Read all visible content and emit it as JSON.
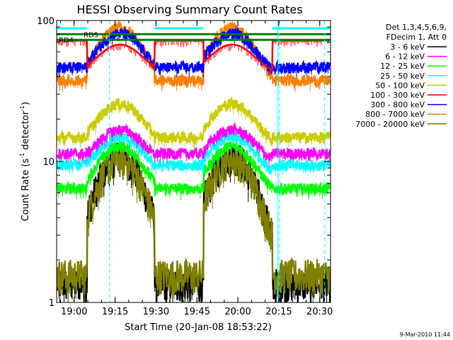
{
  "chart_data": {
    "type": "line",
    "title": "HESSI Observing Summary Count Rates",
    "xlabel": "Start Time (20-Jan-08 18:53:22)",
    "ylabel_parts": {
      "pre": "Count Rate (s",
      "sup": "-1",
      "post": " detector",
      "close": ")"
    },
    "y_scale": "log",
    "ylim": [
      1,
      100
    ],
    "xlim_minutes": [
      18.893,
      20.566
    ],
    "x_ticks": [
      {
        "label": "19:00",
        "t": 19.0
      },
      {
        "label": "19:15",
        "t": 19.25
      },
      {
        "label": "19:30",
        "t": 19.5
      },
      {
        "label": "19:45",
        "t": 19.75
      },
      {
        "label": "20:00",
        "t": 20.0
      },
      {
        "label": "20:15",
        "t": 20.25
      },
      {
        "label": "20:30",
        "t": 20.5
      }
    ],
    "y_ticks": [
      {
        "label": "1",
        "v": 1
      },
      {
        "label": "10",
        "v": 10
      },
      {
        "label": "100",
        "v": 100
      }
    ],
    "legend_header": [
      "Det 1,3,4,5,6,9,",
      "FDecim 1, Att 0"
    ],
    "legend_placement": "right",
    "series": [
      {
        "name": "3 - 6 keV",
        "color": "#000000",
        "night": 1.3,
        "peak": 10.5
      },
      {
        "name": "6 - 12 keV",
        "color": "#ff00ff",
        "night": 11.5,
        "peak": 17
      },
      {
        "name": "12 - 25 keV",
        "color": "#00ff00",
        "night": 6.5,
        "peak": 13
      },
      {
        "name": "25 - 50 keV",
        "color": "#00ffff",
        "night": 9.5,
        "peak": 15
      },
      {
        "name": "50 - 100 keV",
        "color": "#cccc00",
        "night": 15,
        "peak": 26
      },
      {
        "name": "100 - 300 keV",
        "color": "#ff0000",
        "night": 72,
        "peak": 60
      },
      {
        "name": "300 - 800 keV",
        "color": "#0000ff",
        "night": 47,
        "peak": 82
      },
      {
        "name": "800 - 7000 keV",
        "color": "#ff8000",
        "night": 38,
        "peak": 90
      },
      {
        "name": "7000 - 20000 keV",
        "color": "#808000",
        "night": 1.5,
        "peak": 10
      }
    ],
    "saa_levels": [
      {
        "label": "RD5",
        "value": 80,
        "color": "#008000"
      },
      {
        "label": "RD4",
        "value": 73,
        "color": "#008000"
      }
    ],
    "shading_flags": {
      "color": "#00ffff",
      "value": 88
    },
    "day_peaks_t": [
      19.28,
      19.965
    ],
    "night_intervals": [
      [
        18.893,
        19.08
      ],
      [
        19.49,
        19.79
      ],
      [
        20.21,
        20.566
      ]
    ],
    "dashed_markers_t": [
      19.215,
      20.255,
      20.53
    ],
    "solid_markers_t": [
      20.245
    ],
    "grid": false
  },
  "footer": {
    "date_stamp": "9-Mar-2010 11:44"
  }
}
